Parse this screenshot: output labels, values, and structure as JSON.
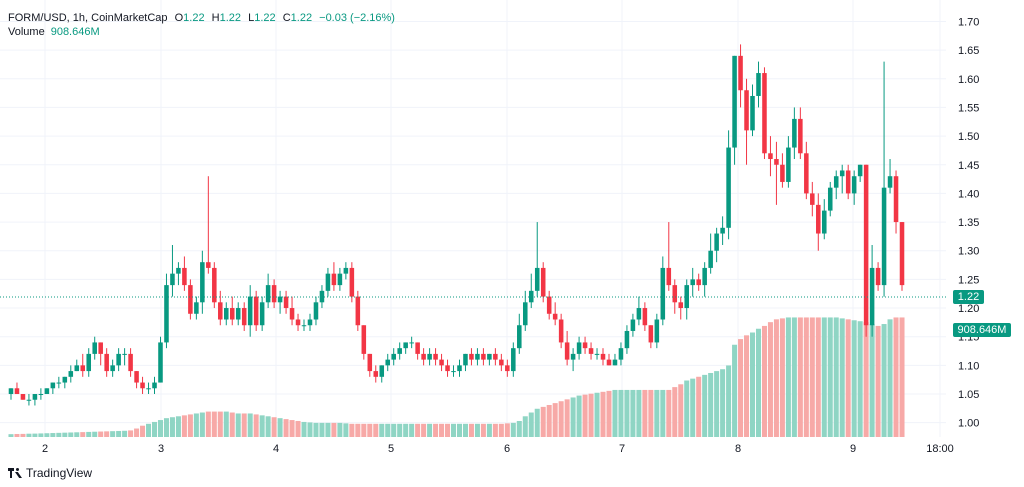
{
  "legend": {
    "symbol": "FORM/USD, 1h, CoinMarketCap",
    "open_label": "O",
    "open": "1.22",
    "high_label": "H",
    "high": "1.22",
    "low_label": "L",
    "low": "1.22",
    "close_label": "C",
    "close": "1.22",
    "change": "−0.03 (−2.16%)",
    "volume_label": "Volume",
    "volume_value": "908.646M"
  },
  "badges": {
    "price": "1.22",
    "volume": "908.646M"
  },
  "brand": {
    "name": "TradingView"
  },
  "colors": {
    "up": "#089981",
    "down": "#f23645",
    "up_vol": "#8fd5c4",
    "down_vol": "#f7a9a7",
    "grid": "#f0f3fa"
  },
  "chart_data": {
    "type": "candlestick",
    "title": "FORM/USD, 1h, CoinMarketCap",
    "ylim": [
      0.975,
      1.72
    ],
    "y_ticks": [
      "1.70",
      "1.65",
      "1.60",
      "1.55",
      "1.50",
      "1.45",
      "1.40",
      "1.35",
      "1.30",
      "1.25",
      "1.20",
      "1.15",
      "1.10",
      "1.05",
      "1.00"
    ],
    "x_ticks": [
      "2",
      "3",
      "4",
      "5",
      "6",
      "7",
      "8",
      "9",
      "18:00"
    ],
    "last_price": 1.22,
    "candles": [
      [
        1.05,
        1.06,
        1.04,
        1.06
      ],
      [
        1.06,
        1.07,
        1.05,
        1.05
      ],
      [
        1.05,
        1.05,
        1.04,
        1.04
      ],
      [
        1.04,
        1.05,
        1.03,
        1.04
      ],
      [
        1.04,
        1.05,
        1.03,
        1.05
      ],
      [
        1.05,
        1.06,
        1.04,
        1.05
      ],
      [
        1.05,
        1.06,
        1.05,
        1.06
      ],
      [
        1.06,
        1.07,
        1.05,
        1.07
      ],
      [
        1.07,
        1.08,
        1.06,
        1.07
      ],
      [
        1.07,
        1.08,
        1.06,
        1.08
      ],
      [
        1.08,
        1.1,
        1.07,
        1.09
      ],
      [
        1.09,
        1.11,
        1.09,
        1.1
      ],
      [
        1.1,
        1.12,
        1.08,
        1.09
      ],
      [
        1.09,
        1.13,
        1.08,
        1.12
      ],
      [
        1.12,
        1.15,
        1.11,
        1.14
      ],
      [
        1.14,
        1.14,
        1.1,
        1.12
      ],
      [
        1.12,
        1.13,
        1.08,
        1.09
      ],
      [
        1.09,
        1.11,
        1.08,
        1.1
      ],
      [
        1.1,
        1.13,
        1.09,
        1.12
      ],
      [
        1.12,
        1.13,
        1.1,
        1.12
      ],
      [
        1.12,
        1.13,
        1.08,
        1.09
      ],
      [
        1.09,
        1.09,
        1.06,
        1.07
      ],
      [
        1.07,
        1.08,
        1.05,
        1.06
      ],
      [
        1.06,
        1.07,
        1.05,
        1.06
      ],
      [
        1.06,
        1.08,
        1.05,
        1.07
      ],
      [
        1.07,
        1.15,
        1.07,
        1.14
      ],
      [
        1.14,
        1.26,
        1.13,
        1.24
      ],
      [
        1.24,
        1.31,
        1.22,
        1.26
      ],
      [
        1.26,
        1.28,
        1.24,
        1.27
      ],
      [
        1.27,
        1.29,
        1.23,
        1.24
      ],
      [
        1.24,
        1.25,
        1.18,
        1.19
      ],
      [
        1.19,
        1.22,
        1.18,
        1.21
      ],
      [
        1.21,
        1.3,
        1.19,
        1.28
      ],
      [
        1.28,
        1.43,
        1.26,
        1.27
      ],
      [
        1.27,
        1.28,
        1.2,
        1.21
      ],
      [
        1.21,
        1.23,
        1.17,
        1.18
      ],
      [
        1.18,
        1.21,
        1.17,
        1.2
      ],
      [
        1.2,
        1.22,
        1.17,
        1.18
      ],
      [
        1.18,
        1.21,
        1.17,
        1.2
      ],
      [
        1.2,
        1.21,
        1.16,
        1.17
      ],
      [
        1.17,
        1.24,
        1.15,
        1.22
      ],
      [
        1.22,
        1.23,
        1.16,
        1.17
      ],
      [
        1.17,
        1.22,
        1.16,
        1.21
      ],
      [
        1.21,
        1.26,
        1.2,
        1.24
      ],
      [
        1.24,
        1.25,
        1.2,
        1.21
      ],
      [
        1.21,
        1.23,
        1.19,
        1.22
      ],
      [
        1.22,
        1.23,
        1.19,
        1.2
      ],
      [
        1.2,
        1.22,
        1.17,
        1.18
      ],
      [
        1.18,
        1.19,
        1.16,
        1.17
      ],
      [
        1.17,
        1.18,
        1.16,
        1.17
      ],
      [
        1.17,
        1.19,
        1.16,
        1.18
      ],
      [
        1.18,
        1.22,
        1.17,
        1.21
      ],
      [
        1.21,
        1.24,
        1.2,
        1.23
      ],
      [
        1.23,
        1.27,
        1.22,
        1.26
      ],
      [
        1.26,
        1.28,
        1.23,
        1.24
      ],
      [
        1.24,
        1.27,
        1.23,
        1.26
      ],
      [
        1.26,
        1.28,
        1.25,
        1.27
      ],
      [
        1.27,
        1.28,
        1.21,
        1.22
      ],
      [
        1.22,
        1.23,
        1.16,
        1.17
      ],
      [
        1.17,
        1.17,
        1.11,
        1.12
      ],
      [
        1.12,
        1.12,
        1.08,
        1.09
      ],
      [
        1.09,
        1.1,
        1.07,
        1.08
      ],
      [
        1.08,
        1.1,
        1.07,
        1.1
      ],
      [
        1.1,
        1.12,
        1.09,
        1.11
      ],
      [
        1.11,
        1.13,
        1.1,
        1.12
      ],
      [
        1.12,
        1.14,
        1.11,
        1.13
      ],
      [
        1.13,
        1.14,
        1.12,
        1.14
      ],
      [
        1.14,
        1.15,
        1.13,
        1.14
      ],
      [
        1.14,
        1.14,
        1.11,
        1.12
      ],
      [
        1.12,
        1.13,
        1.1,
        1.11
      ],
      [
        1.11,
        1.13,
        1.1,
        1.12
      ],
      [
        1.12,
        1.13,
        1.1,
        1.11
      ],
      [
        1.11,
        1.12,
        1.09,
        1.1
      ],
      [
        1.1,
        1.11,
        1.08,
        1.09
      ],
      [
        1.09,
        1.1,
        1.08,
        1.09
      ],
      [
        1.09,
        1.11,
        1.08,
        1.1
      ],
      [
        1.1,
        1.12,
        1.09,
        1.12
      ],
      [
        1.12,
        1.13,
        1.1,
        1.11
      ],
      [
        1.11,
        1.13,
        1.1,
        1.12
      ],
      [
        1.12,
        1.13,
        1.1,
        1.11
      ],
      [
        1.11,
        1.12,
        1.1,
        1.12
      ],
      [
        1.12,
        1.13,
        1.1,
        1.11
      ],
      [
        1.11,
        1.12,
        1.09,
        1.1
      ],
      [
        1.1,
        1.11,
        1.08,
        1.09
      ],
      [
        1.09,
        1.14,
        1.08,
        1.13
      ],
      [
        1.13,
        1.19,
        1.12,
        1.17
      ],
      [
        1.17,
        1.23,
        1.16,
        1.21
      ],
      [
        1.21,
        1.26,
        1.2,
        1.23
      ],
      [
        1.23,
        1.35,
        1.22,
        1.27
      ],
      [
        1.27,
        1.28,
        1.21,
        1.22
      ],
      [
        1.22,
        1.23,
        1.18,
        1.19
      ],
      [
        1.19,
        1.21,
        1.17,
        1.18
      ],
      [
        1.18,
        1.19,
        1.13,
        1.14
      ],
      [
        1.14,
        1.16,
        1.1,
        1.11
      ],
      [
        1.11,
        1.13,
        1.09,
        1.12
      ],
      [
        1.12,
        1.15,
        1.11,
        1.14
      ],
      [
        1.14,
        1.15,
        1.12,
        1.13
      ],
      [
        1.13,
        1.14,
        1.11,
        1.12
      ],
      [
        1.12,
        1.13,
        1.11,
        1.12
      ],
      [
        1.12,
        1.13,
        1.1,
        1.11
      ],
      [
        1.11,
        1.12,
        1.1,
        1.1
      ],
      [
        1.1,
        1.12,
        1.1,
        1.11
      ],
      [
        1.11,
        1.14,
        1.1,
        1.13
      ],
      [
        1.13,
        1.17,
        1.12,
        1.16
      ],
      [
        1.16,
        1.19,
        1.15,
        1.18
      ],
      [
        1.18,
        1.22,
        1.17,
        1.2
      ],
      [
        1.2,
        1.21,
        1.16,
        1.17
      ],
      [
        1.17,
        1.17,
        1.13,
        1.14
      ],
      [
        1.14,
        1.19,
        1.13,
        1.18
      ],
      [
        1.18,
        1.29,
        1.17,
        1.27
      ],
      [
        1.27,
        1.35,
        1.23,
        1.24
      ],
      [
        1.24,
        1.25,
        1.19,
        1.21
      ],
      [
        1.21,
        1.22,
        1.18,
        1.2
      ],
      [
        1.2,
        1.25,
        1.18,
        1.24
      ],
      [
        1.24,
        1.27,
        1.22,
        1.25
      ],
      [
        1.25,
        1.26,
        1.23,
        1.24
      ],
      [
        1.24,
        1.28,
        1.22,
        1.27
      ],
      [
        1.27,
        1.33,
        1.26,
        1.3
      ],
      [
        1.3,
        1.34,
        1.28,
        1.33
      ],
      [
        1.33,
        1.36,
        1.31,
        1.34
      ],
      [
        1.34,
        1.51,
        1.32,
        1.48
      ],
      [
        1.48,
        1.64,
        1.45,
        1.64
      ],
      [
        1.64,
        1.66,
        1.55,
        1.58
      ],
      [
        1.58,
        1.6,
        1.45,
        1.51
      ],
      [
        1.51,
        1.59,
        1.5,
        1.57
      ],
      [
        1.57,
        1.63,
        1.55,
        1.61
      ],
      [
        1.61,
        1.62,
        1.46,
        1.47
      ],
      [
        1.47,
        1.5,
        1.43,
        1.46
      ],
      [
        1.46,
        1.49,
        1.38,
        1.45
      ],
      [
        1.45,
        1.47,
        1.41,
        1.42
      ],
      [
        1.42,
        1.5,
        1.41,
        1.48
      ],
      [
        1.48,
        1.55,
        1.46,
        1.53
      ],
      [
        1.53,
        1.55,
        1.46,
        1.47
      ],
      [
        1.47,
        1.49,
        1.39,
        1.4
      ],
      [
        1.4,
        1.42,
        1.36,
        1.38
      ],
      [
        1.38,
        1.4,
        1.3,
        1.33
      ],
      [
        1.33,
        1.39,
        1.32,
        1.37
      ],
      [
        1.37,
        1.42,
        1.36,
        1.41
      ],
      [
        1.41,
        1.44,
        1.39,
        1.43
      ],
      [
        1.43,
        1.45,
        1.4,
        1.44
      ],
      [
        1.44,
        1.45,
        1.39,
        1.4
      ],
      [
        1.4,
        1.44,
        1.38,
        1.43
      ],
      [
        1.43,
        1.45,
        1.42,
        1.45
      ],
      [
        1.45,
        1.45,
        1.15,
        1.17
      ],
      [
        1.17,
        1.31,
        1.15,
        1.27
      ],
      [
        1.27,
        1.28,
        1.23,
        1.24
      ],
      [
        1.24,
        1.63,
        1.22,
        1.41
      ],
      [
        1.41,
        1.46,
        1.4,
        1.43
      ],
      [
        1.43,
        1.44,
        1.33,
        1.35
      ],
      [
        1.35,
        1.35,
        1.23,
        1.24
      ]
    ],
    "volume_scale": [
      0,
      1100
    ],
    "volumes": [
      30,
      32,
      33,
      35,
      36,
      38,
      40,
      42,
      44,
      46,
      48,
      50,
      52,
      54,
      56,
      58,
      60,
      62,
      64,
      66,
      70,
      90,
      120,
      140,
      160,
      180,
      200,
      210,
      220,
      230,
      240,
      250,
      260,
      270,
      270,
      270,
      270,
      260,
      250,
      250,
      250,
      240,
      230,
      220,
      210,
      200,
      190,
      180,
      170,
      160,
      155,
      150,
      150,
      150,
      150,
      150,
      145,
      140,
      140,
      140,
      140,
      140,
      140,
      140,
      140,
      140,
      140,
      140,
      140,
      140,
      140,
      140,
      140,
      140,
      140,
      140,
      140,
      140,
      140,
      140,
      140,
      140,
      140,
      145,
      150,
      170,
      220,
      260,
      300,
      320,
      340,
      360,
      380,
      400,
      420,
      440,
      450,
      460,
      470,
      480,
      490,
      500,
      500,
      500,
      500,
      500,
      500,
      500,
      500,
      500,
      500,
      530,
      560,
      600,
      620,
      640,
      660,
      680,
      700,
      720,
      760,
      980,
      1040,
      1080,
      1110,
      1150,
      1180,
      1220,
      1250,
      1260,
      1270,
      1270,
      1270,
      1270,
      1270,
      1270,
      1270,
      1270,
      1270,
      1260,
      1250,
      1240,
      1230,
      1220,
      1200,
      1180,
      1200,
      1250,
      1270,
      1270
    ]
  }
}
